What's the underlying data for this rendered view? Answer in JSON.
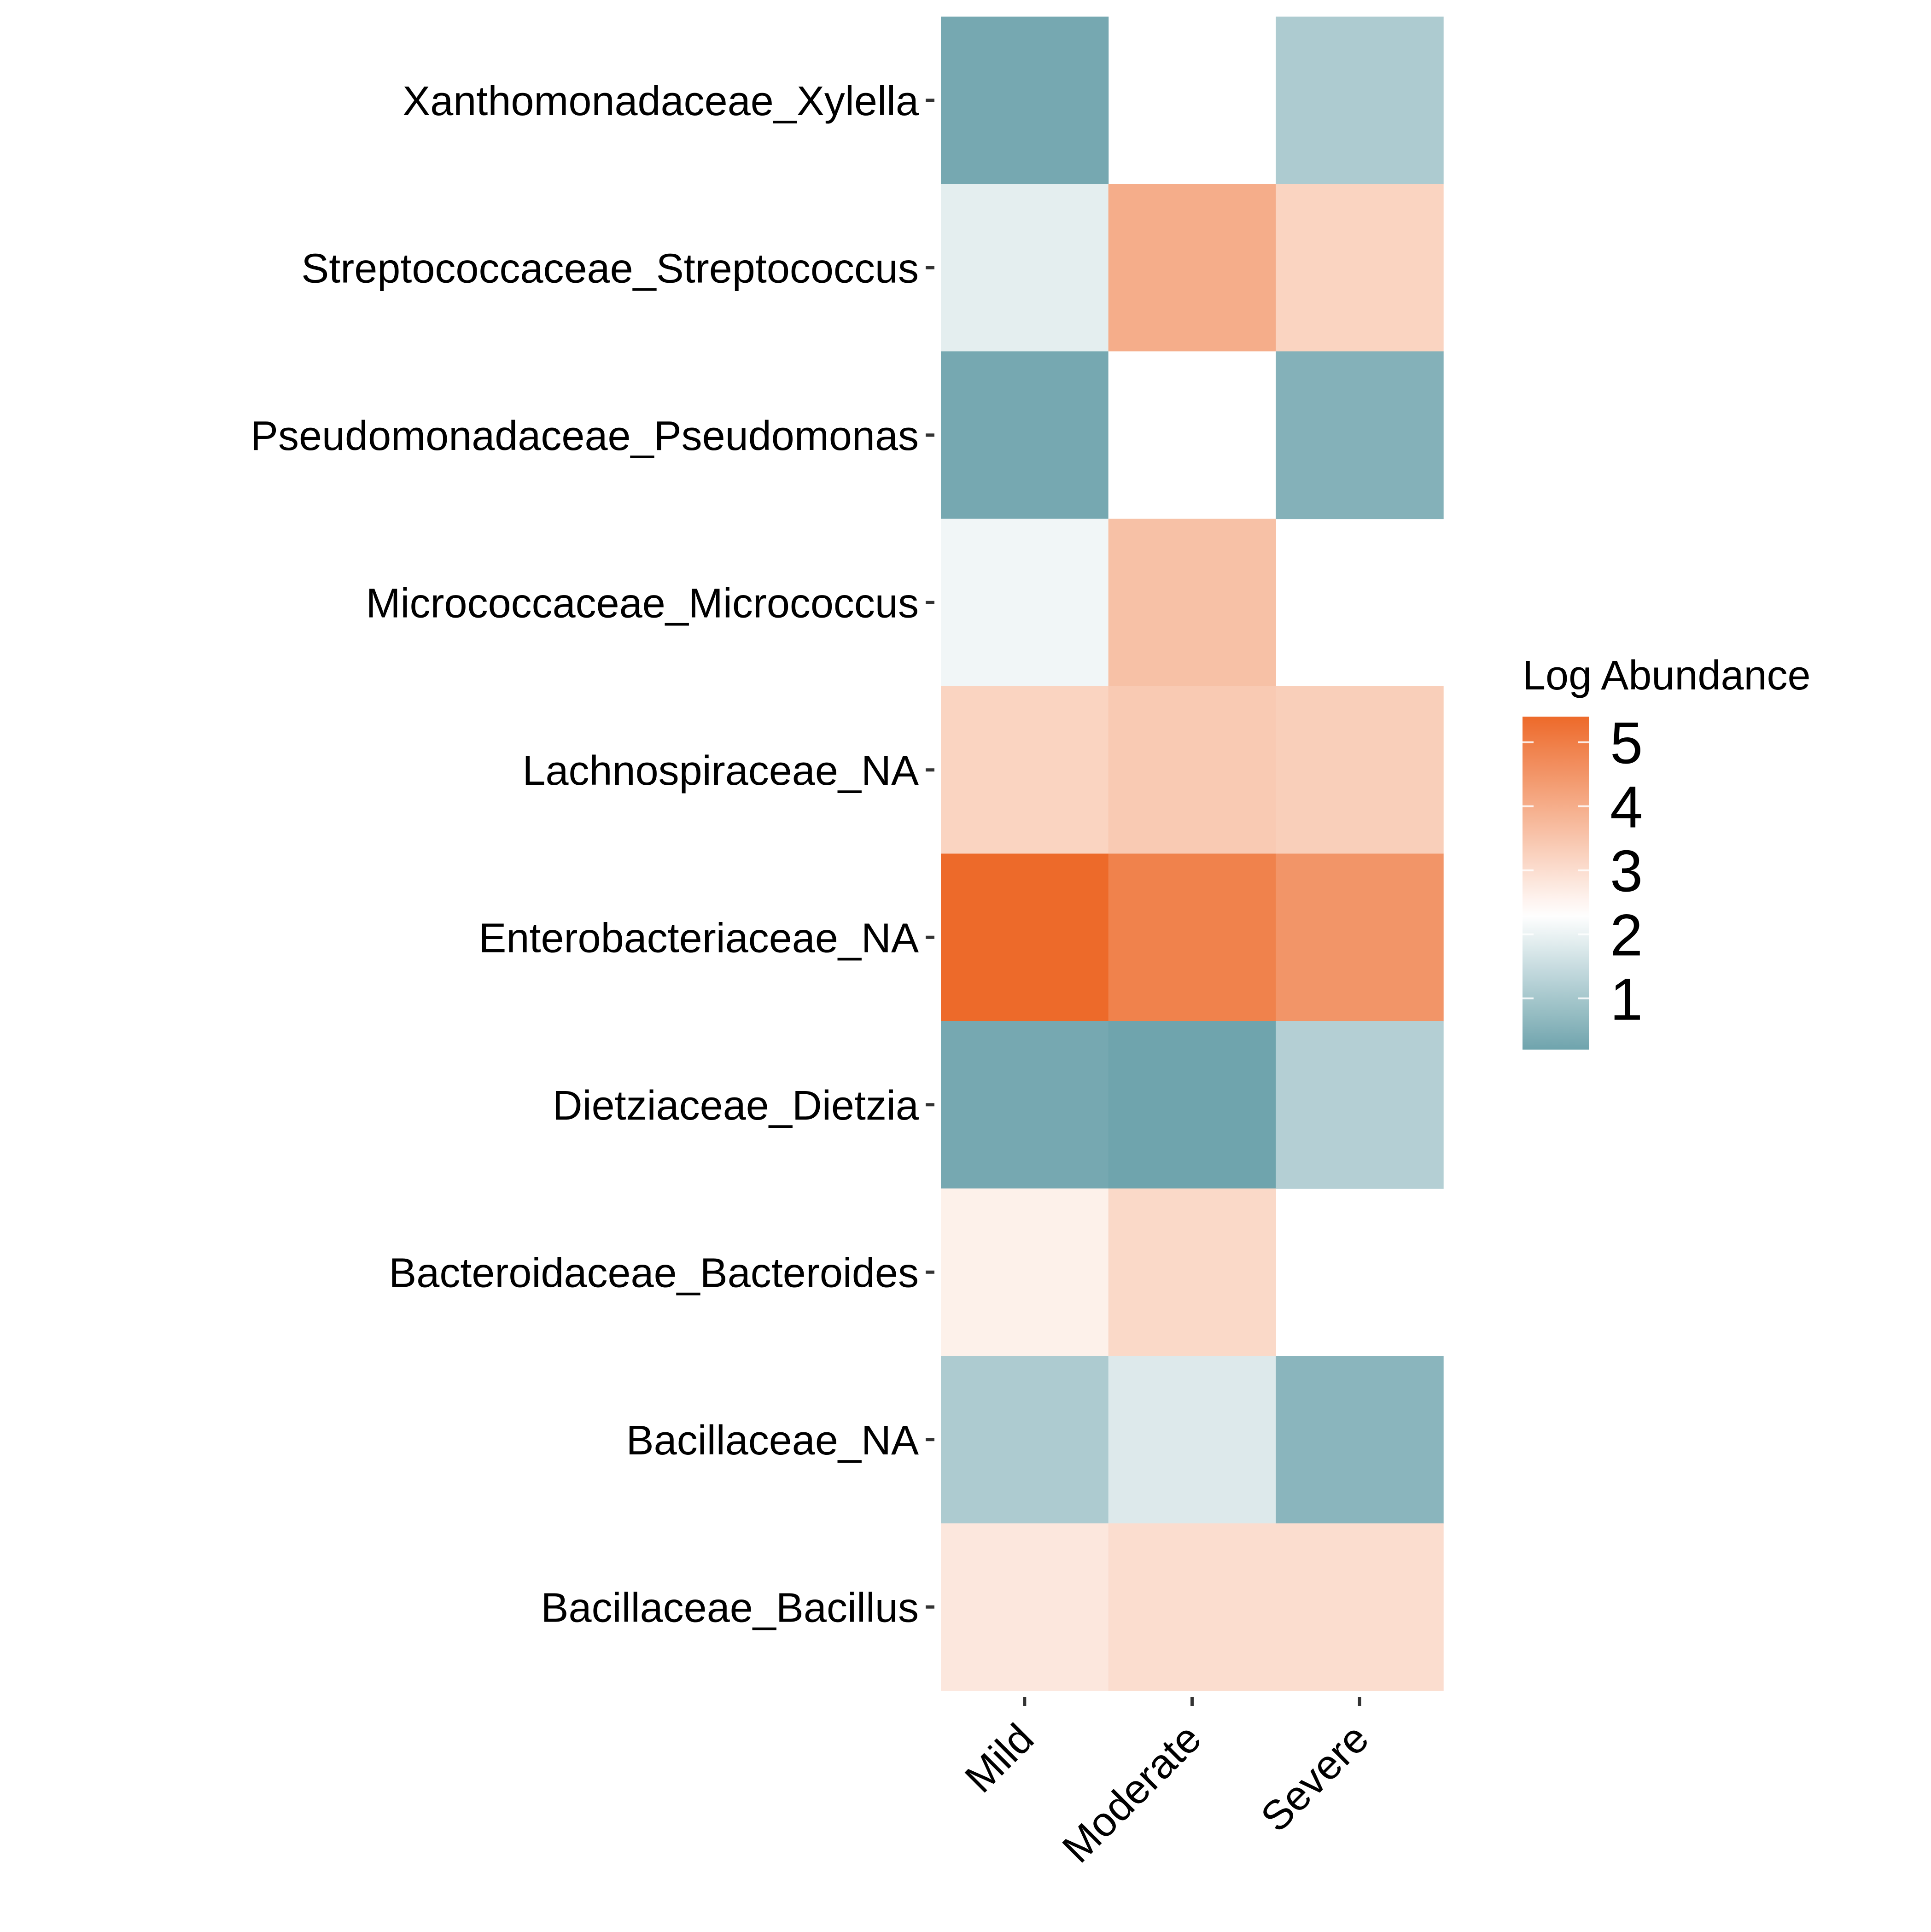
{
  "chart_data": {
    "type": "heatmap",
    "title": "",
    "xlabel": "",
    "ylabel": "",
    "x_categories": [
      "Mild",
      "Moderate",
      "Severe"
    ],
    "y_categories": [
      "Xanthomonadaceae_Xylella",
      "Streptococcaceae_Streptococcus",
      "Pseudomonadaceae_Pseudomonas",
      "Micrococcaceae_Micrococcus",
      "Lachnospiraceae_NA",
      "Enterobacteriaceae_NA",
      "Dietziaceae_Dietzia",
      "Bacteroidaceae_Bacteroides",
      "Bacillaceae_NA",
      "Bacillaceae_Bacillus"
    ],
    "values": [
      [
        0.3,
        null,
        1.1
      ],
      [
        1.9,
        4.0,
        3.2
      ],
      [
        0.3,
        2.3,
        0.5
      ],
      [
        2.1,
        3.6,
        null
      ],
      [
        3.2,
        3.4,
        3.3
      ],
      [
        5.4,
        4.9,
        4.5
      ],
      [
        0.3,
        0.2,
        1.2
      ],
      [
        2.6,
        3.1,
        null
      ],
      [
        1.1,
        1.8,
        0.6
      ],
      [
        2.8,
        3.0,
        3.0
      ]
    ],
    "colorscale": {
      "name": "Log Abundance",
      "range": [
        0.2,
        5.4
      ],
      "midpoint": 2.3,
      "low_color": "#6fa4ad",
      "mid_color": "#ffffff",
      "high_color": "#ed6a2a",
      "ticks": [
        1,
        2,
        3,
        4,
        5
      ]
    },
    "legend": {
      "title": "Log Abundance",
      "placement": "right"
    },
    "grid": false
  }
}
